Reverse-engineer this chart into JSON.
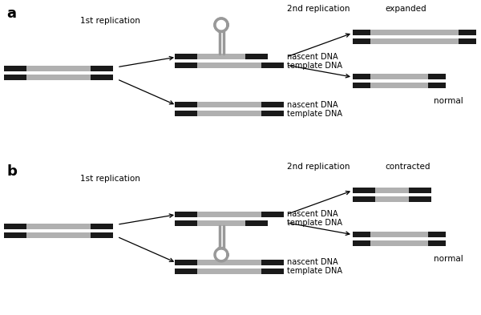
{
  "panel_a_label": "a",
  "panel_b_label": "b",
  "label_1st": "1st replication",
  "label_2nd": "2nd replication",
  "label_expanded": "expanded",
  "label_contracted": "contracted",
  "label_normal": "normal",
  "label_nascent": "nascent DNA",
  "label_template": "template DNA",
  "black_color": "#1a1a1a",
  "gray_color": "#b0b0b0",
  "hairpin_color": "#999999",
  "bg_color": "#ffffff"
}
